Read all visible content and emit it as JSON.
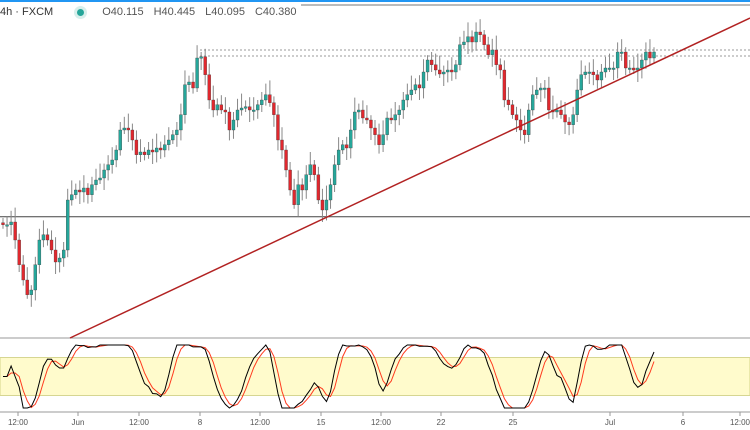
{
  "legend": {
    "interval": "4h · FXCM",
    "open": "O40.115",
    "high": "H40.445",
    "low": "L40.095",
    "close": "C40.380",
    "status_color": "#26a69a"
  },
  "colors": {
    "up": "#26a69a",
    "down": "#e0282e",
    "trendline": "#b22222",
    "stoch_k": "#000000",
    "stoch_d": "#ff3b1f",
    "stoch_band": "#fffbcc"
  },
  "chart_data": {
    "type": "candlestick",
    "closes": [
      36.06,
      36.06,
      36.13,
      35.68,
      35.06,
      34.68,
      34.31,
      34.43,
      35.06,
      35.68,
      35.81,
      35.68,
      35.43,
      35.13,
      35.23,
      35.43,
      36.68,
      36.81,
      36.93,
      36.88,
      36.98,
      36.81,
      37.06,
      37.18,
      37.23,
      37.43,
      37.56,
      37.68,
      37.93,
      38.43,
      38.48,
      38.43,
      38.18,
      37.81,
      37.88,
      37.81,
      37.93,
      37.88,
      37.98,
      37.93,
      38.06,
      38.18,
      38.31,
      38.43,
      38.81,
      39.56,
      39.63,
      39.48,
      40.23,
      40.26,
      39.81,
      39.18,
      38.93,
      39.06,
      38.93,
      38.88,
      38.43,
      38.68,
      38.93,
      38.98,
      39.01,
      38.93,
      38.93,
      39.06,
      39.18,
      39.31,
      39.11,
      38.81,
      38.18,
      37.93,
      37.43,
      36.93,
      36.56,
      37.06,
      36.93,
      37.31,
      37.56,
      37.31,
      36.68,
      36.43,
      36.68,
      37.06,
      37.56,
      37.93,
      38.06,
      37.98,
      38.43,
      38.88,
      38.93,
      38.73,
      38.68,
      38.48,
      38.31,
      38.06,
      38.31,
      38.73,
      38.68,
      38.81,
      38.93,
      39.18,
      39.31,
      39.43,
      39.56,
      39.48,
      39.88,
      40.18,
      40.06,
      39.93,
      39.83,
      39.88,
      39.93,
      39.88,
      40.06,
      40.56,
      40.63,
      40.76,
      40.63,
      40.88,
      40.81,
      40.56,
      40.31,
      40.43,
      40.06,
      39.93,
      39.18,
      39.06,
      38.81,
      38.68,
      38.43,
      38.31,
      38.93,
      39.31,
      39.43,
      39.48,
      39.48,
      38.93,
      38.88,
      38.93,
      38.81,
      38.63,
      38.56,
      38.81,
      39.43,
      39.81,
      39.88,
      39.88,
      39.81,
      39.68,
      39.88,
      39.98,
      39.98,
      39.98,
      40.38,
      40.38,
      39.98,
      39.98,
      39.93,
      39.98,
      40.18,
      40.38,
      40.23,
      40.38
    ],
    "horizontal_level": 36.26,
    "resistance_levels": [
      40.43,
      40.28
    ],
    "trendline": {
      "start": 33.23,
      "end": 41.23
    },
    "stochastic_levels": [
      80,
      20
    ],
    "x_ticks": [
      "12:00",
      "Jun",
      "12:00",
      "8",
      "12:00",
      "15",
      "12:00",
      "22",
      "25",
      "Jul",
      "6",
      "12:00"
    ]
  }
}
